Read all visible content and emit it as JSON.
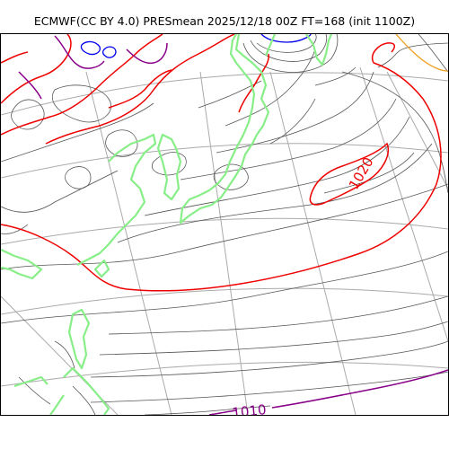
{
  "title": "ECMWF(CC BY 4.0) PRESmean 2025/12/18 00Z FT=168 (init 1100Z)",
  "contour_labels": {
    "high": "1020",
    "low": "1010"
  },
  "colors": {
    "coastline": "#88ee88",
    "graticule": "#aaaaaa",
    "isobar": "#555555",
    "isobar_1020": "#ee0000",
    "isobar_1010": "#880088",
    "low_pressure": "#0000ee",
    "isobar_1030": "#f0a020"
  }
}
